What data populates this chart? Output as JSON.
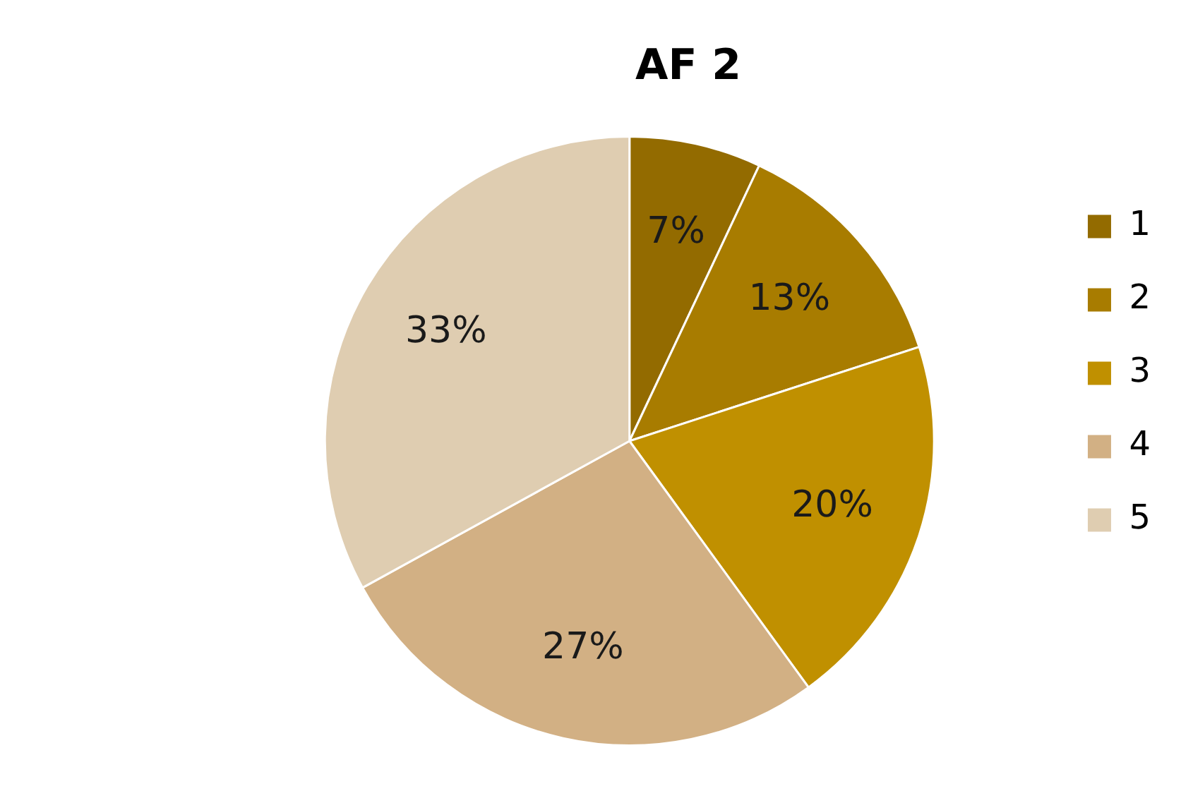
{
  "chart_data": {
    "type": "pie",
    "title": "AF 2",
    "categories": [
      "1",
      "2",
      "3",
      "4",
      "5"
    ],
    "values": [
      7,
      13,
      20,
      27,
      33
    ],
    "value_labels": [
      "7%",
      "13%",
      "20%",
      "27%",
      "33%"
    ],
    "colors": [
      "#936b00",
      "#a87c00",
      "#c09000",
      "#d2b084",
      "#dfcdb1"
    ],
    "legend": "right"
  }
}
